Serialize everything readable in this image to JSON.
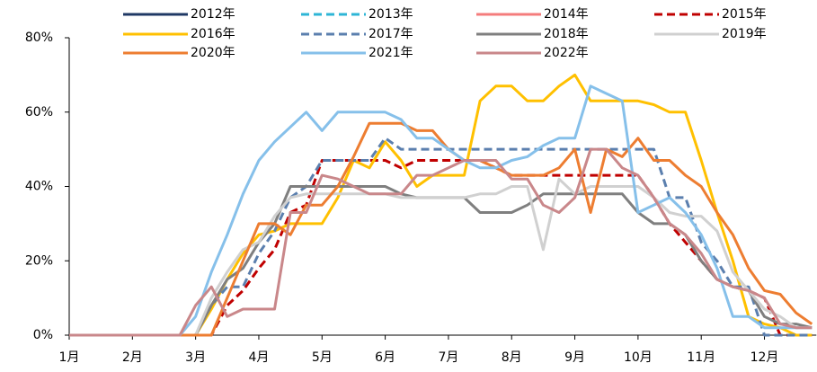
{
  "chart_data": {
    "type": "line",
    "categories": [
      "1月",
      null,
      null,
      null,
      "2月",
      null,
      null,
      null,
      "3月",
      null,
      null,
      null,
      "4月",
      null,
      null,
      null,
      "5月",
      null,
      null,
      null,
      "6月",
      null,
      null,
      null,
      "7月",
      null,
      null,
      null,
      "8月",
      null,
      null,
      null,
      "9月",
      null,
      null,
      null,
      "10月",
      null,
      null,
      null,
      "11月",
      null,
      null,
      null,
      "12月",
      null,
      null,
      null
    ],
    "ylim": [
      0,
      80
    ],
    "yticks": [
      {
        "value": 0,
        "label": "0%"
      },
      {
        "value": 20,
        "label": "20%"
      },
      {
        "value": 40,
        "label": "40%"
      },
      {
        "value": 60,
        "label": "60%"
      },
      {
        "value": 80,
        "label": "80%"
      }
    ],
    "series": [
      {
        "name": "2012年",
        "color": "#1f3864",
        "dashed": false,
        "values": [
          null,
          null,
          null,
          null,
          null,
          null,
          null,
          null,
          null,
          null,
          null,
          null,
          null,
          null,
          null,
          null,
          null,
          null,
          null,
          null,
          null,
          null,
          null,
          null,
          null,
          null,
          null,
          null,
          null,
          null,
          null,
          null,
          null,
          null,
          null,
          null,
          null,
          null,
          null,
          null,
          null,
          null,
          null,
          null,
          null,
          null,
          null,
          null
        ]
      },
      {
        "name": "2013年",
        "color": "#2eb5d6",
        "dashed": true,
        "values": [
          null,
          null,
          null,
          null,
          null,
          null,
          null,
          null,
          null,
          null,
          null,
          null,
          null,
          null,
          null,
          null,
          null,
          null,
          null,
          null,
          null,
          null,
          null,
          null,
          null,
          null,
          null,
          null,
          null,
          null,
          null,
          null,
          null,
          null,
          null,
          null,
          null,
          null,
          null,
          null,
          null,
          null,
          null,
          null,
          null,
          null,
          null,
          null
        ]
      },
      {
        "name": "2014年",
        "color": "#f47c7c",
        "dashed": false,
        "values": [
          null,
          null,
          null,
          null,
          null,
          null,
          null,
          null,
          null,
          null,
          null,
          null,
          null,
          null,
          null,
          null,
          null,
          null,
          null,
          null,
          null,
          null,
          null,
          null,
          null,
          null,
          null,
          null,
          null,
          null,
          null,
          null,
          null,
          null,
          null,
          null,
          null,
          null,
          null,
          null,
          null,
          null,
          null,
          null,
          null,
          null,
          null,
          null
        ]
      },
      {
        "name": "2015年",
        "color": "#c00000",
        "dashed": true,
        "values": [
          0,
          0,
          0,
          0,
          0,
          0,
          0,
          0,
          0,
          0,
          8,
          12,
          18,
          23,
          33,
          35,
          47,
          47,
          47,
          47,
          47,
          45,
          47,
          47,
          47,
          47,
          47,
          45,
          43,
          43,
          43,
          43,
          43,
          43,
          43,
          43,
          43,
          37,
          30,
          25,
          20,
          15,
          13,
          12,
          10,
          0,
          0,
          0
        ]
      },
      {
        "name": "2016年",
        "color": "#ffc000",
        "dashed": false,
        "values": [
          0,
          0,
          0,
          0,
          0,
          0,
          0,
          0,
          0,
          7,
          15,
          22,
          27,
          28,
          30,
          30,
          30,
          37,
          47,
          45,
          52,
          47,
          40,
          43,
          43,
          43,
          63,
          67,
          67,
          63,
          63,
          67,
          70,
          63,
          63,
          63,
          63,
          62,
          60,
          60,
          47,
          33,
          20,
          5,
          3,
          2,
          0,
          0
        ]
      },
      {
        "name": "2017年",
        "color": "#5b7fae",
        "dashed": true,
        "values": [
          0,
          0,
          0,
          0,
          0,
          0,
          0,
          0,
          0,
          8,
          13,
          13,
          22,
          28,
          37,
          40,
          47,
          47,
          47,
          47,
          53,
          50,
          50,
          50,
          50,
          50,
          50,
          50,
          50,
          50,
          50,
          50,
          50,
          50,
          50,
          50,
          50,
          50,
          37,
          37,
          25,
          20,
          13,
          13,
          0,
          0,
          0,
          0
        ]
      },
      {
        "name": "2018年",
        "color": "#7f7f7f",
        "dashed": false,
        "values": [
          0,
          0,
          0,
          0,
          0,
          0,
          0,
          0,
          0,
          8,
          15,
          18,
          25,
          30,
          40,
          40,
          40,
          40,
          40,
          40,
          40,
          38,
          37,
          37,
          37,
          37,
          33,
          33,
          33,
          35,
          38,
          38,
          38,
          38,
          38,
          38,
          33,
          30,
          30,
          27,
          20,
          15,
          13,
          12,
          5,
          3,
          3,
          2
        ]
      },
      {
        "name": "2019年",
        "color": "#d0d0d0",
        "dashed": false,
        "values": [
          0,
          0,
          0,
          0,
          0,
          0,
          0,
          0,
          0,
          10,
          17,
          23,
          25,
          32,
          37,
          38,
          38,
          38,
          38,
          38,
          38,
          37,
          37,
          37,
          37,
          37,
          38,
          38,
          40,
          40,
          23,
          42,
          38,
          40,
          40,
          40,
          40,
          37,
          33,
          32,
          32,
          28,
          17,
          12,
          7,
          5,
          2,
          2
        ]
      },
      {
        "name": "2020年",
        "color": "#ed7d31",
        "dashed": false,
        "values": [
          0,
          0,
          0,
          0,
          0,
          0,
          0,
          0,
          0,
          0,
          10,
          20,
          30,
          30,
          27,
          35,
          35,
          40,
          48,
          57,
          57,
          57,
          55,
          55,
          50,
          47,
          47,
          45,
          43,
          43,
          43,
          45,
          50,
          33,
          50,
          48,
          53,
          47,
          47,
          43,
          40,
          33,
          27,
          18,
          12,
          11,
          6,
          3
        ]
      },
      {
        "name": "2021年",
        "color": "#86c0ea",
        "dashed": false,
        "values": [
          0,
          0,
          0,
          0,
          0,
          0,
          0,
          0,
          5,
          17,
          27,
          38,
          47,
          52,
          56,
          60,
          55,
          60,
          60,
          60,
          60,
          58,
          53,
          53,
          50,
          47,
          45,
          45,
          47,
          48,
          51,
          53,
          53,
          67,
          65,
          63,
          33,
          35,
          37,
          33,
          27,
          18,
          5,
          5,
          2,
          2,
          2,
          2
        ]
      },
      {
        "name": "2022年",
        "color": "#c9878a",
        "dashed": false,
        "values": [
          0,
          0,
          0,
          0,
          0,
          0,
          0,
          0,
          8,
          13,
          5,
          7,
          7,
          7,
          33,
          33,
          43,
          42,
          40,
          38,
          38,
          38,
          43,
          43,
          45,
          47,
          47,
          47,
          42,
          42,
          35,
          33,
          37,
          50,
          50,
          45,
          43,
          37,
          30,
          27,
          22,
          15,
          13,
          12,
          10,
          3,
          2,
          2
        ]
      }
    ]
  }
}
